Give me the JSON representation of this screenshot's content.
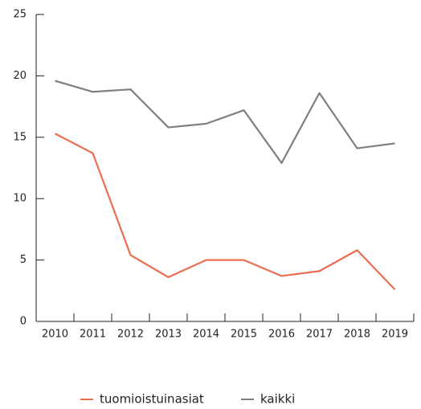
{
  "chart_data": {
    "type": "line",
    "categories": [
      "2010",
      "2011",
      "2012",
      "2013",
      "2014",
      "2015",
      "2016",
      "2017",
      "2018",
      "2019"
    ],
    "series": [
      {
        "name": "tuomioistuinasiat",
        "color": "#ec6d51",
        "values": [
          15.3,
          13.7,
          5.4,
          3.6,
          5.0,
          5.0,
          3.7,
          4.1,
          5.8,
          2.6
        ]
      },
      {
        "name": "kaikki",
        "color": "#7f7f7f",
        "values": [
          19.6,
          18.7,
          18.9,
          15.8,
          16.1,
          17.2,
          12.9,
          18.6,
          14.1,
          14.5
        ]
      }
    ],
    "ylim": [
      0,
      25
    ],
    "yticks": [
      0,
      5,
      10,
      15,
      20,
      25
    ],
    "legend": "bottom"
  }
}
